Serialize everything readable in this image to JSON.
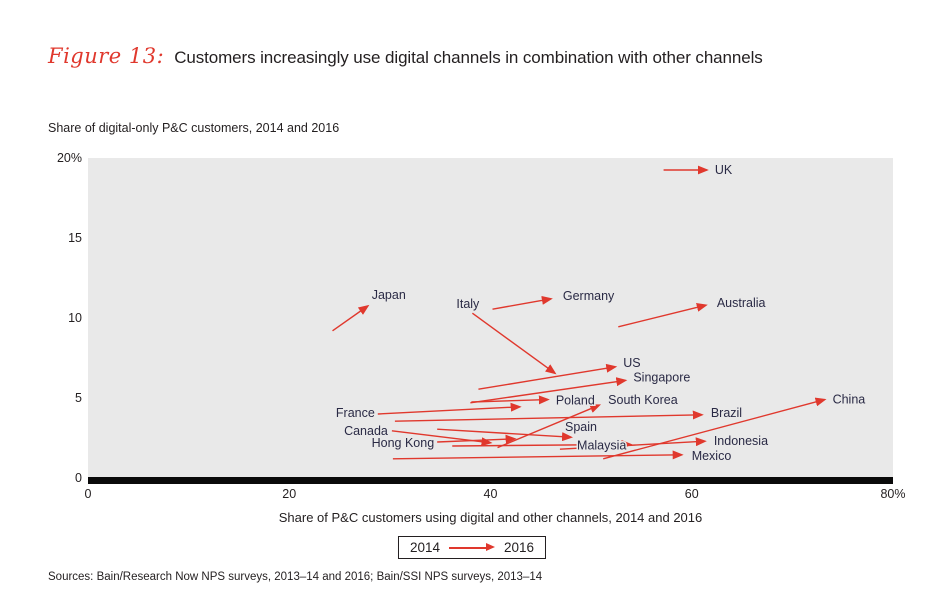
{
  "header": {
    "figure_label": "Figure 13:",
    "title": "Customers increasingly use digital channels in combination with other channels"
  },
  "chart_data": {
    "type": "scatter",
    "subtype": "arrow-change-plot",
    "subtitle": "Share of digital-only P&C customers, 2014 and 2016",
    "xlabel": "Share of P&C customers using digital and other channels, 2014 and 2016",
    "ylabel": "Share of digital-only P&C customers",
    "xlim": [
      0,
      80
    ],
    "ylim": [
      0,
      20
    ],
    "grid": false,
    "x_ticks": [
      {
        "v": 0,
        "t": "0"
      },
      {
        "v": 20,
        "t": "20"
      },
      {
        "v": 40,
        "t": "40"
      },
      {
        "v": 60,
        "t": "60"
      },
      {
        "v": 80,
        "t": "80%"
      }
    ],
    "y_ticks": [
      {
        "v": 20,
        "t": "20%"
      },
      {
        "v": 15,
        "t": "15"
      },
      {
        "v": 10,
        "t": "10"
      },
      {
        "v": 5,
        "t": "5"
      },
      {
        "v": 0,
        "t": "0"
      }
    ],
    "series": [
      {
        "name": "UK",
        "from": [
          57.2,
          19.25
        ],
        "to": [
          61.5,
          19.25
        ],
        "label": {
          "ref": "to",
          "dx": 8,
          "dy": 0,
          "anchor": "start"
        }
      },
      {
        "name": "Japan",
        "from": [
          24.3,
          9.2
        ],
        "to": [
          27.8,
          10.75
        ],
        "label": {
          "ref": "to",
          "dx": 4,
          "dy": -11,
          "anchor": "start"
        }
      },
      {
        "name": "Italy",
        "from": [
          38.2,
          10.3
        ],
        "to": [
          46.4,
          6.55
        ],
        "label": {
          "ref": "from",
          "dx": -16,
          "dy": -9,
          "anchor": "start"
        }
      },
      {
        "name": "Germany",
        "from": [
          40.2,
          10.55
        ],
        "to": [
          46.0,
          11.2
        ],
        "label": {
          "ref": "to",
          "dx": 12,
          "dy": -3,
          "anchor": "start"
        }
      },
      {
        "name": "Australia",
        "from": [
          52.7,
          9.45
        ],
        "to": [
          61.4,
          10.8
        ],
        "label": {
          "ref": "to",
          "dx": 11,
          "dy": -2,
          "anchor": "start"
        }
      },
      {
        "name": "US",
        "from": [
          38.8,
          5.55
        ],
        "to": [
          52.4,
          6.95
        ],
        "label": {
          "ref": "to",
          "dx": 8,
          "dy": -4,
          "anchor": "start"
        }
      },
      {
        "name": "Singapore",
        "from": [
          38.0,
          4.7
        ],
        "to": [
          53.4,
          6.1
        ],
        "label": {
          "ref": "to",
          "dx": 8,
          "dy": -3,
          "anchor": "start"
        }
      },
      {
        "name": "Poland",
        "from": [
          38.1,
          4.75
        ],
        "to": [
          45.7,
          4.9
        ],
        "label": {
          "ref": "to",
          "dx": 8,
          "dy": 1,
          "anchor": "start"
        }
      },
      {
        "name": "South Korea",
        "from": [
          40.7,
          1.9
        ],
        "to": [
          50.8,
          4.55
        ],
        "label": {
          "ref": "to",
          "dx": 9,
          "dy": -5,
          "anchor": "start"
        }
      },
      {
        "name": "France",
        "from": [
          28.8,
          4.0
        ],
        "to": [
          42.9,
          4.45
        ],
        "label": {
          "ref": "from",
          "dx": -3,
          "dy": -1,
          "anchor": "end"
        }
      },
      {
        "name": "Brazil",
        "from": [
          30.5,
          3.55
        ],
        "to": [
          61.0,
          3.95
        ],
        "label": {
          "ref": "to",
          "dx": 9,
          "dy": -2,
          "anchor": "start"
        }
      },
      {
        "name": "Canada",
        "from": [
          30.2,
          2.95
        ],
        "to": [
          40.0,
          2.2
        ],
        "label": {
          "ref": "from",
          "dx": -4,
          "dy": 0,
          "anchor": "end"
        }
      },
      {
        "name": "Hong Kong",
        "from": [
          34.7,
          2.25
        ],
        "to": [
          42.4,
          2.45
        ],
        "label": {
          "ref": "from",
          "dx": -3,
          "dy": 1,
          "anchor": "end"
        }
      },
      {
        "name": "Spain",
        "from": [
          34.7,
          3.05
        ],
        "to": [
          48.0,
          2.55
        ],
        "label": {
          "ref": "to",
          "dx": -6,
          "dy": -10,
          "anchor": "start"
        }
      },
      {
        "name": "Malaysia",
        "from": [
          36.2,
          2.0
        ],
        "to": [
          53.9,
          2.1
        ],
        "label": {
          "ref": "to",
          "dx": -4,
          "dy": 1,
          "anchor": "end"
        }
      },
      {
        "name": "Indonesia",
        "from": [
          46.9,
          1.8
        ],
        "to": [
          61.3,
          2.3
        ],
        "label": {
          "ref": "to",
          "dx": 9,
          "dy": 0,
          "anchor": "start"
        }
      },
      {
        "name": "Mexico",
        "from": [
          30.3,
          1.2
        ],
        "to": [
          59.0,
          1.45
        ],
        "label": {
          "ref": "to",
          "dx": 10,
          "dy": 1,
          "anchor": "start"
        }
      },
      {
        "name": "China",
        "from": [
          51.2,
          1.2
        ],
        "to": [
          73.2,
          4.9
        ],
        "label": {
          "ref": "to",
          "dx": 8,
          "dy": 0,
          "anchor": "start"
        }
      }
    ],
    "legend": {
      "from_label": "2014",
      "to_label": "2016"
    },
    "legend_position": "bottom-center"
  },
  "footer": {
    "sources": "Sources: Bain/Research Now NPS surveys, 2013–14 and 2016; Bain/SSI NPS surveys, 2013–14"
  },
  "colors": {
    "accent_red": "#e0382d",
    "plot_background": "#e9e9e9",
    "axis_bar_black": "#0a0a0a",
    "country_label": "#2a2a45",
    "text_black": "#231f20"
  }
}
